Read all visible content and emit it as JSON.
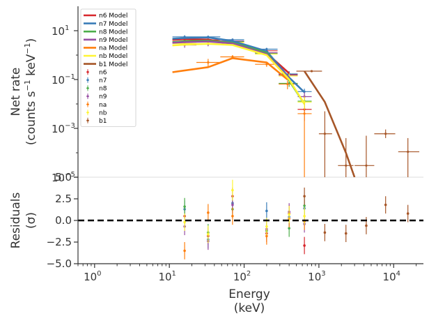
{
  "chart_data": [
    {
      "type": "line",
      "panel": "spectrum",
      "ylabel": [
        "Net rate",
        "(counts s$^{-1}$ keV$^{-1}$)"
      ],
      "x_scale": "log",
      "y_scale": "log",
      "xlim": [
        0.6,
        25000
      ],
      "ylim": [
        1e-05,
        100
      ],
      "y_ticks": [
        {
          "value": 10,
          "base": "10",
          "exp": "1"
        },
        {
          "value": 0.1,
          "base": "10",
          "exp": "−1"
        },
        {
          "value": 0.001,
          "base": "10",
          "exp": "−3"
        },
        {
          "value": 1e-05,
          "base": "10",
          "exp": "−5"
        }
      ],
      "legend_position": "top-left",
      "legend": [
        {
          "label": "n6 Model",
          "color": "#d7262b",
          "kind": "line"
        },
        {
          "label": "n7 Model",
          "color": "#3a7db8",
          "kind": "line"
        },
        {
          "label": "n8 Model",
          "color": "#4cae4a",
          "kind": "line"
        },
        {
          "label": "n9 Model",
          "color": "#974ea3",
          "kind": "line"
        },
        {
          "label": "na Model",
          "color": "#ff7f0e",
          "kind": "line"
        },
        {
          "label": "nb Model",
          "color": "#fff533",
          "kind": "line"
        },
        {
          "label": "b1 Model",
          "color": "#a65628",
          "kind": "line"
        },
        {
          "label": "n6",
          "color": "#d7262b",
          "kind": "point"
        },
        {
          "label": "n7",
          "color": "#3a7db8",
          "kind": "point"
        },
        {
          "label": "n8",
          "color": "#4cae4a",
          "kind": "point"
        },
        {
          "label": "n9",
          "color": "#974ea3",
          "kind": "point"
        },
        {
          "label": "na",
          "color": "#ff7f0e",
          "kind": "point"
        },
        {
          "label": "nb",
          "color": "#fff533",
          "kind": "point"
        },
        {
          "label": "b1",
          "color": "#a65628",
          "kind": "point"
        }
      ],
      "models": [
        {
          "name": "n6 Model",
          "color": "#d7262b",
          "x": [
            11,
            16,
            33,
            70,
            200,
            400
          ],
          "y": [
            4.2,
            4.5,
            4.3,
            3.0,
            1.2,
            0.18
          ]
        },
        {
          "name": "n7 Model",
          "color": "#3a7db8",
          "x": [
            11,
            16,
            33,
            70,
            200,
            400,
            640
          ],
          "y": [
            4.7,
            5.0,
            5.3,
            3.8,
            1.45,
            0.12,
            0.03
          ]
        },
        {
          "name": "n8 Model",
          "color": "#4cae4a",
          "x": [
            11,
            16,
            33,
            70,
            200,
            400,
            640
          ],
          "y": [
            3.4,
            3.7,
            3.9,
            3.2,
            1.25,
            0.09,
            0.01
          ]
        },
        {
          "name": "n9 Model",
          "color": "#974ea3",
          "x": [
            11,
            16,
            33,
            70,
            200,
            400
          ],
          "y": [
            3.2,
            3.4,
            3.6,
            3.0,
            1.1,
            0.11
          ]
        },
        {
          "name": "na Model",
          "color": "#ff7f0e",
          "x": [
            11,
            33,
            70,
            200,
            380
          ],
          "y": [
            0.2,
            0.32,
            0.75,
            0.5,
            0.1
          ]
        },
        {
          "name": "nb Model",
          "color": "#fff533",
          "x": [
            11,
            16,
            33,
            70,
            200,
            400,
            640
          ],
          "y": [
            2.5,
            2.7,
            2.9,
            2.6,
            1.0,
            0.1,
            0.01
          ]
        },
        {
          "name": "b1 Model",
          "color": "#a65628",
          "x": [
            640,
            1200,
            2300,
            3000
          ],
          "y": [
            0.22,
            0.012,
            0.0001,
            1e-05
          ]
        }
      ],
      "points": [
        {
          "det": "n6",
          "color": "#d7262b",
          "x": [
            16,
            33,
            70,
            200,
            400,
            640
          ],
          "xlo": [
            11,
            23,
            48,
            140,
            290,
            520
          ],
          "xhi": [
            23,
            48,
            100,
            280,
            520,
            800
          ],
          "y": [
            3.5,
            4.2,
            3.3,
            1.5,
            0.16,
            0.006
          ],
          "ylo": [
            2.8,
            3.6,
            2.9,
            1.3,
            0.12,
            0.002
          ],
          "yhi": [
            4.4,
            4.9,
            3.8,
            1.7,
            0.2,
            0.012
          ]
        },
        {
          "det": "n7",
          "color": "#3a7db8",
          "x": [
            16,
            33,
            70,
            200,
            400,
            640
          ],
          "xlo": [
            11,
            23,
            48,
            140,
            290,
            520
          ],
          "xhi": [
            23,
            48,
            100,
            280,
            520,
            800
          ],
          "y": [
            5.6,
            5.6,
            4.3,
            1.75,
            0.17,
            0.032
          ],
          "ylo": [
            4.8,
            4.9,
            3.8,
            1.5,
            0.13,
            0.024
          ],
          "yhi": [
            6.5,
            6.3,
            4.8,
            2.0,
            0.22,
            0.042
          ]
        },
        {
          "det": "n8",
          "color": "#4cae4a",
          "x": [
            16,
            33,
            70,
            200,
            400,
            640
          ],
          "xlo": [
            11,
            23,
            48,
            140,
            290,
            520
          ],
          "xhi": [
            23,
            48,
            100,
            280,
            520,
            800
          ],
          "y": [
            4.3,
            3.6,
            3.6,
            1.2,
            0.07,
            0.013
          ],
          "ylo": [
            3.6,
            3.0,
            3.1,
            1.0,
            0.05,
            0.006
          ],
          "yhi": [
            5.0,
            4.2,
            4.1,
            1.4,
            0.09,
            0.022
          ]
        },
        {
          "det": "n9",
          "color": "#974ea3",
          "x": [
            16,
            33,
            70,
            200,
            400,
            640
          ],
          "xlo": [
            11,
            23,
            48,
            140,
            290,
            520
          ],
          "xhi": [
            23,
            48,
            100,
            280,
            520,
            800
          ],
          "y": [
            2.6,
            2.8,
            3.8,
            1.25,
            0.15,
            0.02
          ],
          "ylo": [
            2.0,
            2.3,
            3.3,
            1.05,
            0.11,
            0.01
          ],
          "yhi": [
            3.2,
            3.3,
            4.3,
            1.45,
            0.19,
            0.03
          ]
        },
        {
          "det": "na",
          "color": "#ff7f0e",
          "x": [
            33,
            70,
            200,
            380,
            640
          ],
          "xlo": [
            23,
            48,
            140,
            290,
            520
          ],
          "xhi": [
            48,
            100,
            280,
            520,
            800
          ],
          "y": [
            0.5,
            0.85,
            0.42,
            0.065,
            0.004
          ],
          "ylo": [
            0.3,
            0.7,
            0.33,
            0.04,
            1e-05
          ],
          "yhi": [
            0.7,
            1.0,
            0.52,
            0.09,
            0.02
          ]
        },
        {
          "det": "nb",
          "color": "#fff533",
          "x": [
            16,
            33,
            70,
            200,
            400,
            640
          ],
          "xlo": [
            11,
            23,
            48,
            140,
            290,
            520
          ],
          "xhi": [
            23,
            48,
            100,
            280,
            520,
            800
          ],
          "y": [
            3.0,
            3.4,
            3.3,
            1.1,
            0.14,
            0.012
          ],
          "ylo": [
            2.4,
            2.9,
            2.8,
            0.95,
            0.1,
            0.006
          ],
          "yhi": [
            3.6,
            3.9,
            3.8,
            1.3,
            0.18,
            0.02
          ]
        },
        {
          "det": "b1",
          "color": "#a65628",
          "x": [
            800,
            1200,
            2300,
            4300,
            7800,
            15500
          ],
          "xlo": [
            500,
            1000,
            1800,
            3000,
            5500,
            11500
          ],
          "xhi": [
            1100,
            1500,
            2900,
            5500,
            10500,
            22000
          ],
          "y": [
            0.22,
            0.0006,
            3e-05,
            3e-05,
            0.0006,
            0.00011
          ],
          "ylo": [
            0.2,
            1e-05,
            1e-05,
            1e-05,
            0.0004,
            1e-05
          ],
          "yhi": [
            0.24,
            0.005,
            0.0004,
            0.0005,
            0.0009,
            0.0004
          ]
        }
      ]
    },
    {
      "type": "scatter",
      "panel": "residuals",
      "xlabel": [
        "Energy",
        "(keV)"
      ],
      "ylabel": [
        "Residuals",
        "($\\sigma$)"
      ],
      "x_scale": "log",
      "xlim": [
        0.6,
        25000
      ],
      "ylim": [
        -5,
        5
      ],
      "x_ticks": [
        {
          "value": 1,
          "base": "10",
          "exp": "0"
        },
        {
          "value": 10,
          "base": "10",
          "exp": "1"
        },
        {
          "value": 100,
          "base": "10",
          "exp": "2"
        },
        {
          "value": 1000,
          "base": "10",
          "exp": "3"
        },
        {
          "value": 10000,
          "base": "10",
          "exp": "4"
        }
      ],
      "y_ticks": [
        {
          "value": 5,
          "label": "5.0"
        },
        {
          "value": 2.5,
          "label": "2.5"
        },
        {
          "value": 0,
          "label": "0.0"
        },
        {
          "value": -2.5,
          "label": "−2.5"
        },
        {
          "value": -5,
          "label": "−5.0"
        }
      ],
      "zero_line": 0,
      "points": [
        {
          "det": "n6",
          "color": "#d7262b",
          "x": [
            16,
            33,
            70,
            200,
            400,
            640
          ],
          "y": [
            0.5,
            -1.8,
            2.8,
            -1.5,
            0.8,
            -2.9
          ],
          "err": [
            1.0,
            1.0,
            1.0,
            1.0,
            1.0,
            1.0
          ]
        },
        {
          "det": "n7",
          "color": "#3a7db8",
          "x": [
            16,
            33,
            70,
            200,
            400,
            640
          ],
          "y": [
            1.3,
            -2.2,
            2.0,
            1.1,
            0.4,
            1.4
          ],
          "err": [
            1.0,
            1.0,
            1.0,
            1.0,
            1.0,
            1.0
          ]
        },
        {
          "det": "n8",
          "color": "#4cae4a",
          "x": [
            16,
            33,
            70,
            200,
            400,
            640
          ],
          "y": [
            1.6,
            -1.4,
            1.3,
            -1.2,
            -0.9,
            1.7
          ],
          "err": [
            1.0,
            1.0,
            1.0,
            1.0,
            1.0,
            1.0
          ]
        },
        {
          "det": "n9",
          "color": "#974ea3",
          "x": [
            16,
            33,
            70,
            200,
            400,
            640
          ],
          "y": [
            -0.7,
            -2.4,
            1.8,
            -1.0,
            1.0,
            -0.4
          ],
          "err": [
            1.0,
            1.0,
            1.0,
            1.0,
            1.0,
            1.0
          ]
        },
        {
          "det": "na",
          "color": "#ff7f0e",
          "x": [
            16,
            33,
            70,
            200,
            400,
            640
          ],
          "y": [
            -3.5,
            0.9,
            0.5,
            -1.8,
            0.2,
            -0.1
          ],
          "err": [
            1.0,
            1.0,
            1.0,
            1.0,
            1.0,
            1.0
          ]
        },
        {
          "det": "nb",
          "color": "#fff533",
          "x": [
            16,
            33,
            70,
            200,
            400,
            640
          ],
          "y": [
            -0.2,
            -1.6,
            3.5,
            -0.7,
            0.7,
            0.5
          ],
          "err": [
            1.0,
            1.0,
            1.2,
            1.0,
            1.0,
            1.0
          ]
        },
        {
          "det": "b1",
          "color": "#a65628",
          "x": [
            640,
            1200,
            2300,
            4300,
            7800,
            15500
          ],
          "y": [
            2.8,
            -1.4,
            -1.5,
            -0.6,
            1.8,
            0.8
          ],
          "err": [
            1.0,
            1.0,
            1.0,
            1.0,
            1.0,
            1.0
          ]
        }
      ]
    }
  ]
}
